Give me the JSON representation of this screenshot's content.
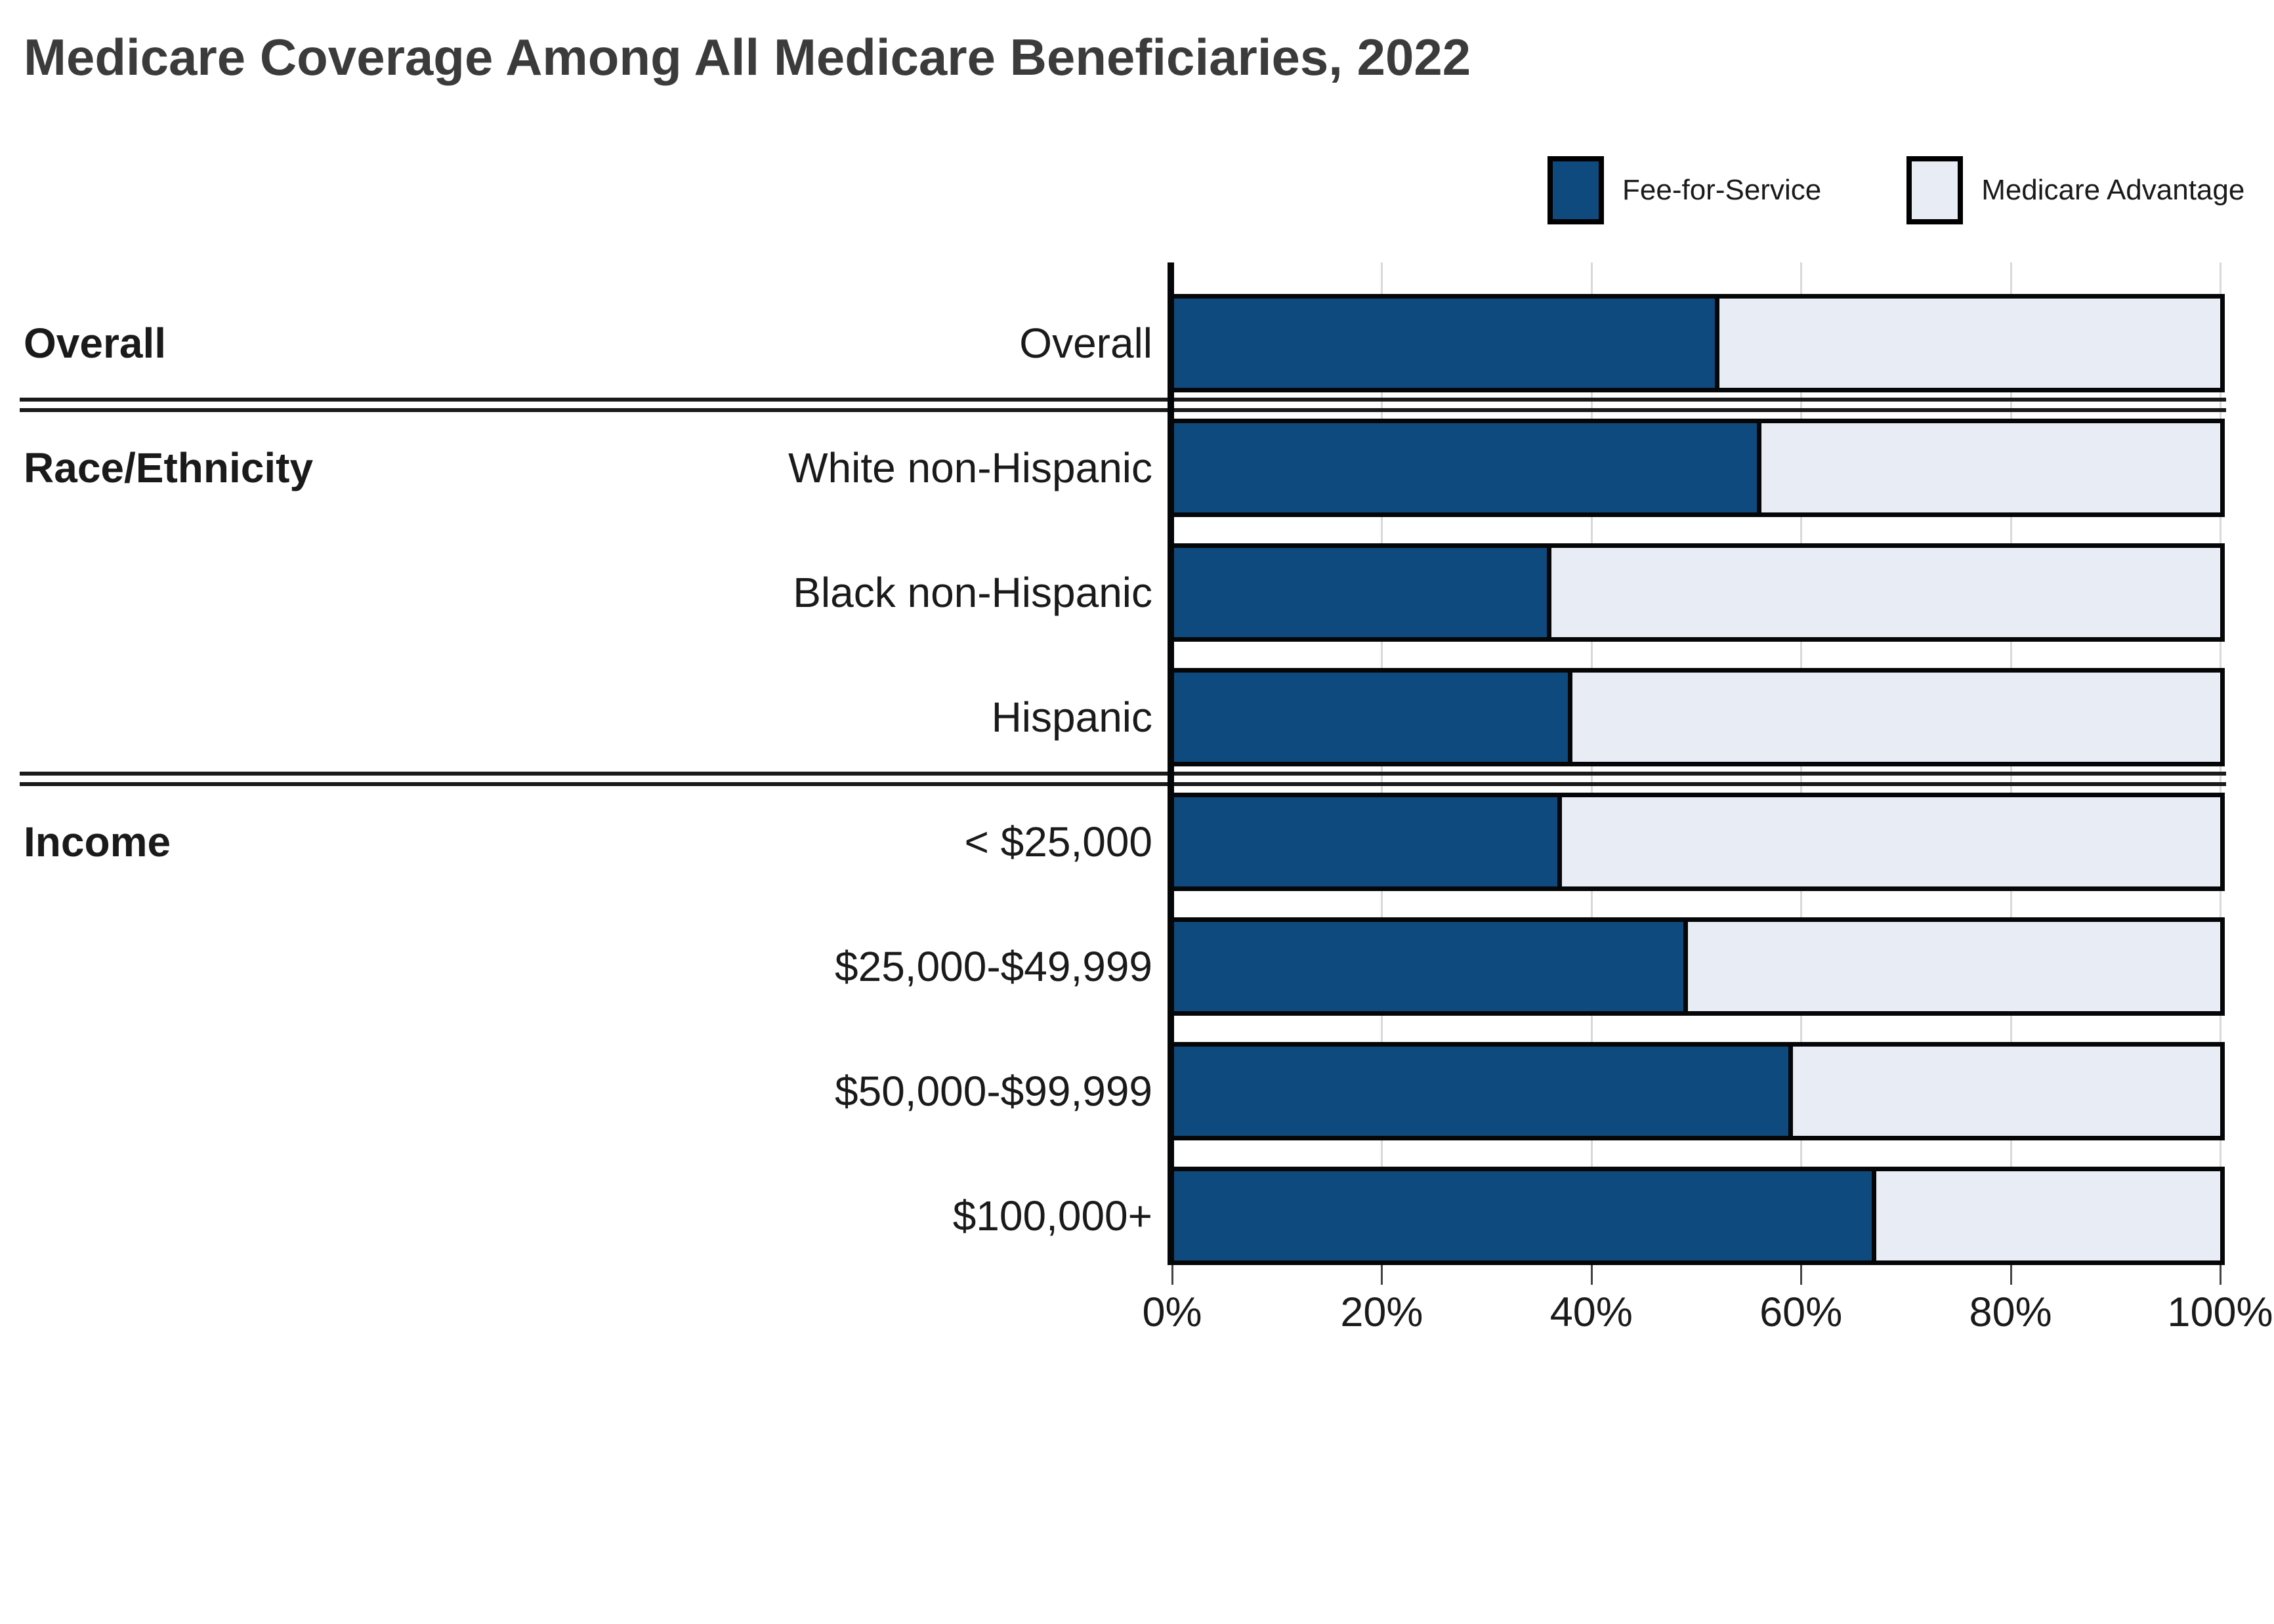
{
  "title": "Medicare Coverage Among All Medicare Beneficiaries, 2022",
  "legend": {
    "items": [
      {
        "label": "Fee-for-Service",
        "color": "#0e4a7d"
      },
      {
        "label": "Medicare Advantage",
        "color": "#e8ecf4"
      }
    ]
  },
  "colors": {
    "fee_for_service": "#0e4a7d",
    "medicare_advantage": "#e8ecf4",
    "bar_border": "#050607",
    "title_text": "#3b3b3b",
    "label_text": "#1a1a1a",
    "gridline": "#d9d9d9",
    "tick": "#444444",
    "divider": "#1a1a1a"
  },
  "chart_data": {
    "type": "bar",
    "stacked": true,
    "orientation": "horizontal",
    "title": "Medicare Coverage Among All Medicare Beneficiaries, 2022",
    "categories": [
      "Overall",
      "White non-Hispanic",
      "Black non-Hispanic",
      "Hispanic",
      "< $25,000",
      "$25,000-$49,999",
      "$50,000-$99,999",
      "$100,000+"
    ],
    "groups": [
      {
        "label": "Overall",
        "first_row_index": 0,
        "rows": [
          "Overall"
        ]
      },
      {
        "label": "Race/Ethnicity",
        "first_row_index": 1,
        "rows": [
          "White non-Hispanic",
          "Black non-Hispanic",
          "Hispanic"
        ]
      },
      {
        "label": "Income",
        "first_row_index": 4,
        "rows": [
          "< $25,000",
          "$25,000-$49,999",
          "$50,000-$99,999",
          "$100,000+"
        ]
      }
    ],
    "series": [
      {
        "name": "Fee-for-Service",
        "color": "#0e4a7d",
        "values": [
          52,
          56,
          36,
          38,
          37,
          49,
          59,
          67
        ]
      },
      {
        "name": "Medicare Advantage",
        "color": "#e8ecf4",
        "values": [
          48,
          44,
          64,
          62,
          63,
          51,
          41,
          33
        ]
      }
    ],
    "x_axis": {
      "min": 0,
      "max": 100,
      "tick_labels": [
        "0%",
        "20%",
        "40%",
        "60%",
        "80%",
        "100%"
      ],
      "tick_values": [
        0,
        20,
        40,
        60,
        80,
        100
      ],
      "grid": true
    },
    "legend_position": "top-right",
    "xlabel": "",
    "ylabel": ""
  }
}
